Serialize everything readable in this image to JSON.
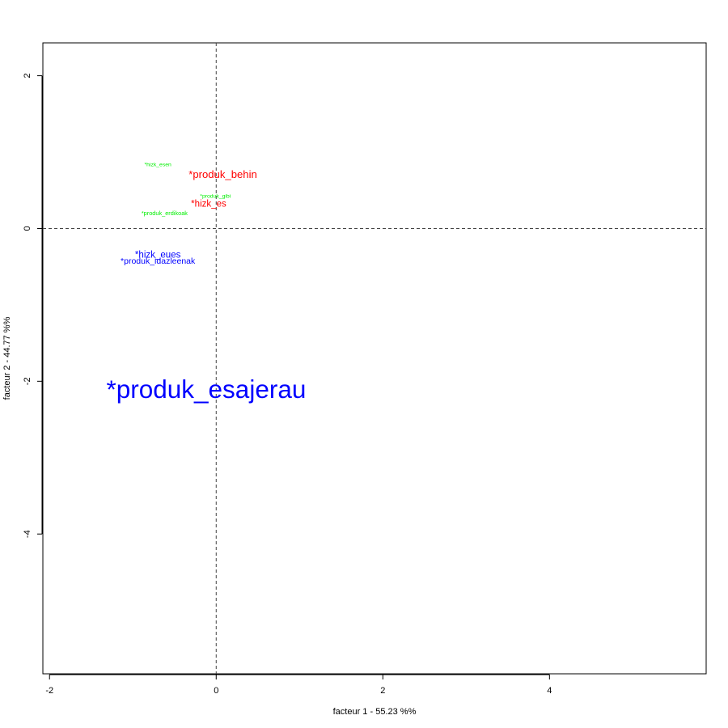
{
  "chart_data": {
    "type": "scatter",
    "title": "",
    "xlabel": "facteur  1  - 55.23 %%",
    "ylabel": "facteur  2  - 44.77 %%",
    "xlim": [
      -2.08,
      5.88
    ],
    "ylim": [
      -5.83,
      2.43
    ],
    "xticks": [
      -2,
      0,
      2,
      4
    ],
    "yticks": [
      -4,
      -2,
      0,
      2
    ],
    "grid": false,
    "reference_lines": {
      "x": 0,
      "y": 0,
      "style": "dashed"
    },
    "colors": {
      "group1": "#0000ff",
      "group2": "#ff0000",
      "group3": "#00ee00"
    },
    "points": [
      {
        "label": "*produk_esajerau",
        "x": -0.12,
        "y": -2.1,
        "color": "#0000ff",
        "size": 3.0
      },
      {
        "label": "*hizk_eues",
        "x": -0.7,
        "y": -0.34,
        "color": "#0000ff",
        "size": 1.1
      },
      {
        "label": "*produk_idazleenak",
        "x": -0.7,
        "y": -0.42,
        "color": "#0000ff",
        "size": 1.0
      },
      {
        "label": "*produk_behin",
        "x": 0.08,
        "y": 0.71,
        "color": "#ff0000",
        "size": 1.25
      },
      {
        "label": "*hizk_es",
        "x": -0.09,
        "y": 0.33,
        "color": "#ff0000",
        "size": 1.1
      },
      {
        "label": "*hizk_esen",
        "x": -0.7,
        "y": 0.84,
        "color": "#00ee00",
        "size": 0.65
      },
      {
        "label": "*produk_gibi",
        "x": -0.01,
        "y": 0.43,
        "color": "#00ee00",
        "size": 0.65
      },
      {
        "label": "*produk_erdikoak",
        "x": -0.62,
        "y": 0.2,
        "color": "#00ee00",
        "size": 0.7
      }
    ]
  }
}
